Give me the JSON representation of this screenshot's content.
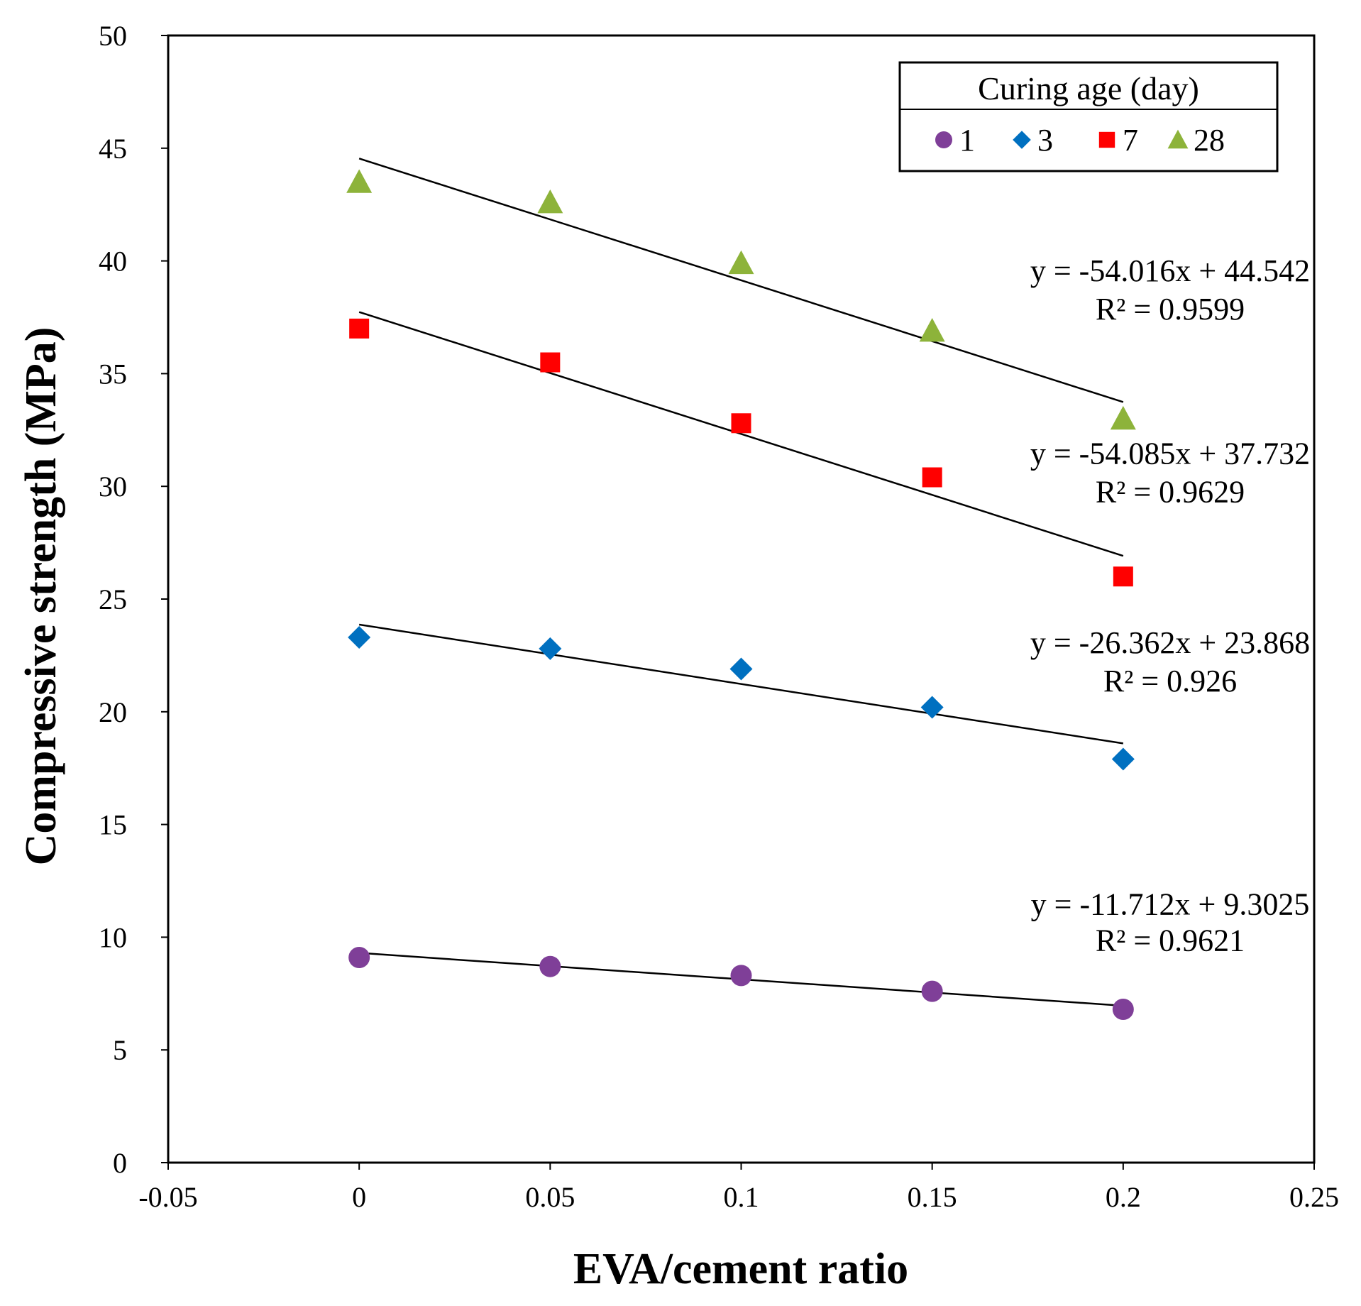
{
  "chart_data": {
    "type": "scatter",
    "xlabel": "EVA/cement ratio",
    "ylabel": "Compressive strength (MPa)",
    "xlim": [
      -0.05,
      0.25
    ],
    "ylim": [
      0,
      50
    ],
    "x_ticks": [
      -0.05,
      0,
      0.05,
      0.1,
      0.15,
      0.2,
      0.25
    ],
    "x_tick_labels": [
      "-0.05",
      "0",
      "0.05",
      "0.1",
      "0.15",
      "0.2",
      "0.25"
    ],
    "y_ticks": [
      0,
      5,
      10,
      15,
      20,
      25,
      30,
      35,
      40,
      45,
      50
    ],
    "y_tick_labels": [
      "0",
      "5",
      "10",
      "15",
      "20",
      "25",
      "30",
      "35",
      "40",
      "45",
      "50"
    ],
    "grid": false,
    "legend": {
      "title": "Curing age (day)",
      "placement": "top-right"
    },
    "x": [
      0,
      0.05,
      0.1,
      0.15,
      0.2
    ],
    "series": [
      {
        "name": "1",
        "marker": "circle",
        "color": "#7F3F98",
        "values": [
          9.1,
          8.7,
          8.3,
          7.6,
          6.8
        ],
        "trendline": {
          "slope": -11.712,
          "intercept": 9.3025,
          "x_range": [
            0,
            0.2
          ]
        },
        "equation": "y = -11.712x + 9.3025",
        "r2": "R² = 0.9621"
      },
      {
        "name": "3",
        "marker": "diamond",
        "color": "#0070C0",
        "values": [
          23.3,
          22.8,
          21.9,
          20.2,
          17.9
        ],
        "trendline": {
          "slope": -26.362,
          "intercept": 23.868,
          "x_range": [
            0,
            0.2
          ]
        },
        "equation": "y = -26.362x + 23.868",
        "r2": "R² = 0.926"
      },
      {
        "name": "7",
        "marker": "square",
        "color": "#FF0000",
        "values": [
          37.0,
          35.5,
          32.8,
          30.4,
          26.0
        ],
        "trendline": {
          "slope": -54.085,
          "intercept": 37.732,
          "x_range": [
            0,
            0.2
          ]
        },
        "equation": "y = -54.085x + 37.732",
        "r2": "R² = 0.9629"
      },
      {
        "name": "28",
        "marker": "triangle",
        "color": "#8DB33A",
        "values": [
          43.5,
          42.6,
          39.9,
          36.9,
          33.0
        ],
        "trendline": {
          "slope": -54.016,
          "intercept": 44.542,
          "x_range": [
            0,
            0.2
          ]
        },
        "equation": "y = -54.016x + 44.542",
        "r2": "R² = 0.9599"
      }
    ]
  }
}
